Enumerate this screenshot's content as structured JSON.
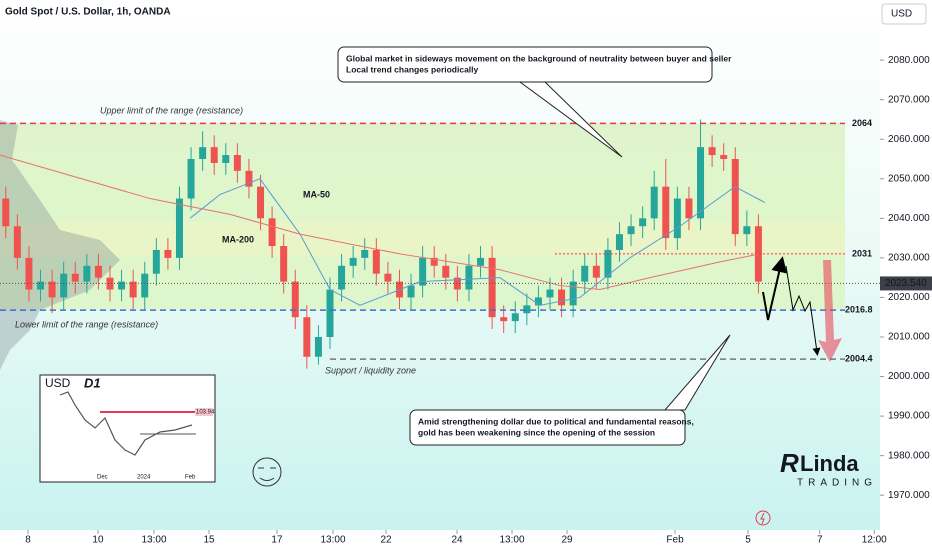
{
  "chart_data": {
    "type": "candlestick",
    "title": "Gold Spot / U.S. Dollar, 1h, OANDA",
    "currency": "USD",
    "up_color": "#26a69a",
    "down_color": "#ef5350",
    "x": [
      0.5,
      1.5,
      2.5,
      3.5,
      4.5,
      5.5,
      6.5,
      7.5,
      8.5,
      9.5,
      10.5,
      11.5,
      12.5,
      13.5,
      14.5,
      15.5,
      16.5,
      17.5,
      18.5,
      19.5,
      20.5,
      21.5,
      22.5,
      23.5,
      24.5,
      25.5,
      26.5,
      27.5,
      28.5,
      29.5,
      30.5,
      31.5,
      32.5,
      33.5,
      34.5,
      35.5,
      36.5,
      37.5,
      38.5,
      39.5,
      40.5,
      41.5,
      42.5,
      43.5,
      44.5,
      45.5,
      46.5,
      47.5,
      48.5,
      49.5,
      50.5,
      51.5,
      52.5,
      53.5,
      54.5,
      55.5,
      56.5,
      57.5,
      58.5,
      59.5,
      60.5,
      61.5,
      62.5,
      63.5,
      64.5,
      65.5
    ],
    "open": [
      2045,
      2038,
      2030,
      2022,
      2024,
      2020,
      2026,
      2024,
      2028,
      2025,
      2022,
      2024,
      2020,
      2026,
      2032,
      2030,
      2045,
      2055,
      2058,
      2054,
      2056,
      2052,
      2048,
      2040,
      2033,
      2024,
      2015,
      2005,
      2010,
      2022,
      2028,
      2030,
      2032,
      2026,
      2024,
      2020,
      2023,
      2030,
      2028,
      2025,
      2022,
      2028,
      2030,
      2015,
      2014,
      2016,
      2018,
      2020,
      2022,
      2018,
      2024,
      2028,
      2025,
      2032,
      2036,
      2038,
      2040,
      2048,
      2035,
      2045,
      2040,
      2058,
      2056,
      2055,
      2036,
      2038
    ],
    "high": [
      2048,
      2041,
      2033,
      2027,
      2027,
      2029,
      2029,
      2031,
      2031,
      2028,
      2027,
      2027,
      2029,
      2035,
      2035,
      2048,
      2058,
      2062,
      2061,
      2059,
      2059,
      2055,
      2051,
      2043,
      2036,
      2027,
      2018,
      2013,
      2025,
      2031,
      2033,
      2035,
      2035,
      2029,
      2027,
      2026,
      2033,
      2033,
      2031,
      2028,
      2031,
      2033,
      2033,
      2018,
      2019,
      2021,
      2023,
      2025,
      2025,
      2027,
      2031,
      2031,
      2035,
      2039,
      2041,
      2043,
      2052,
      2055,
      2048,
      2048,
      2065,
      2061,
      2059,
      2058,
      2042,
      2041
    ],
    "low": [
      2035,
      2027,
      2019,
      2019,
      2016,
      2017,
      2021,
      2021,
      2022,
      2019,
      2019,
      2017,
      2017,
      2023,
      2027,
      2027,
      2042,
      2052,
      2051,
      2051,
      2049,
      2045,
      2037,
      2030,
      2021,
      2012,
      2002,
      2003,
      2007,
      2019,
      2025,
      2027,
      2023,
      2021,
      2017,
      2017,
      2020,
      2025,
      2022,
      2019,
      2019,
      2025,
      2012,
      2011,
      2011,
      2013,
      2015,
      2017,
      2015,
      2015,
      2021,
      2022,
      2022,
      2029,
      2033,
      2035,
      2037,
      2032,
      2032,
      2037,
      2037,
      2053,
      2052,
      2033,
      2033,
      2021
    ],
    "close": [
      2038,
      2030,
      2022,
      2024,
      2020,
      2026,
      2024,
      2028,
      2025,
      2022,
      2024,
      2020,
      2026,
      2032,
      2030,
      2045,
      2055,
      2058,
      2054,
      2056,
      2052,
      2048,
      2040,
      2033,
      2024,
      2015,
      2005,
      2010,
      2022,
      2028,
      2030,
      2032,
      2026,
      2024,
      2020,
      2023,
      2030,
      2028,
      2025,
      2022,
      2028,
      2030,
      2015,
      2014,
      2016,
      2018,
      2020,
      2022,
      2018,
      2024,
      2028,
      2025,
      2032,
      2036,
      2038,
      2040,
      2048,
      2035,
      2045,
      2040,
      2058,
      2056,
      2055,
      2036,
      2038,
      2024
    ],
    "ma": [
      {
        "name": "MA-50",
        "color": "#5b9bd5",
        "x": [
          16.41,
          19,
          22.45,
          25.91,
          28.5,
          31.09,
          36.27,
          43.18,
          46.63,
          50.09,
          54.4,
          58.72,
          63.47,
          66.06
        ],
        "values": [
          2040,
          2046,
          2050,
          2036,
          2022,
          2018,
          2024,
          2025,
          2018,
          2020,
          2030,
          2038,
          2048,
          2044
        ]
      },
      {
        "name": "MA-200",
        "color": "#e57373",
        "x": [
          0,
          12.95,
          19.86,
          25.9,
          34.54,
          43.18,
          48.36,
          51.81,
          56.13,
          62.18,
          65.63
        ],
        "values": [
          2056,
          2045,
          2041,
          2036,
          2031,
          2027,
          2023,
          2022,
          2025,
          2029,
          2031
        ]
      }
    ],
    "levels": [
      {
        "value": 2064,
        "label": "2064",
        "color": "#e8384f",
        "style": "dashed",
        "text": "Upper limit of the range (resistance)"
      },
      {
        "value": 2031,
        "label": "2031",
        "color": "#e8384f",
        "style": "dotted"
      },
      {
        "value": 2016.8,
        "label": "2016.8",
        "color": "#3b6fd6",
        "style": "dashed",
        "text": "Lower limit of the range (resistance)"
      },
      {
        "value": 2004.4,
        "label": "2004.4",
        "color": "#777777",
        "style": "dashed",
        "text": "Support / liquidity zone"
      }
    ],
    "current_price": {
      "value": 2023.54,
      "label": "2023.540"
    },
    "xlim": [
      0,
      76
    ],
    "ylim": [
      1961.2,
      2095.2
    ],
    "yticks": [
      {
        "value": 2080,
        "label": "2080.000"
      },
      {
        "value": 2070,
        "label": "2070.000"
      },
      {
        "value": 2060,
        "label": "2060.000"
      },
      {
        "value": 2050,
        "label": "2050.000"
      },
      {
        "value": 2040,
        "label": "2040.000"
      },
      {
        "value": 2030,
        "label": "2030.000"
      },
      {
        "value": 2020,
        "label": "2020.000"
      },
      {
        "value": 2010,
        "label": "2010.000"
      },
      {
        "value": 2000,
        "label": "2000.000"
      },
      {
        "value": 1990,
        "label": "1990.000"
      },
      {
        "value": 1980,
        "label": "1980.000"
      },
      {
        "value": 1970,
        "label": "1970.000"
      }
    ],
    "xticks": [
      {
        "value": 2.42,
        "label": "8"
      },
      {
        "value": 8.46,
        "label": "10"
      },
      {
        "value": 13.3,
        "label": "13:00"
      },
      {
        "value": 18.05,
        "label": "15"
      },
      {
        "value": 23.92,
        "label": "17"
      },
      {
        "value": 28.76,
        "label": "13:00"
      },
      {
        "value": 33.34,
        "label": "22"
      },
      {
        "value": 39.47,
        "label": "24"
      },
      {
        "value": 44.22,
        "label": "13:00"
      },
      {
        "value": 48.97,
        "label": "29"
      },
      {
        "value": 58.3,
        "label": "Feb"
      },
      {
        "value": 64.6,
        "label": "5"
      },
      {
        "value": 70.8,
        "label": "7"
      },
      {
        "value": 75.5,
        "label": "12:00"
      }
    ],
    "callouts": [
      [
        "Global market in sideways movement on the background of neutrality between buyer and seller",
        "Local trend changes periodically"
      ],
      [
        "Amid strengthening dollar due to political and fundamental reasons,",
        "gold has been weakening since the opening of the session"
      ]
    ],
    "inset": {
      "title": "USD",
      "timeframe": "D1",
      "labels": [
        "Dec",
        "2024",
        "Feb"
      ],
      "price": "103.94"
    },
    "logo": {
      "name": "Linda",
      "sub": "TRADING"
    }
  }
}
